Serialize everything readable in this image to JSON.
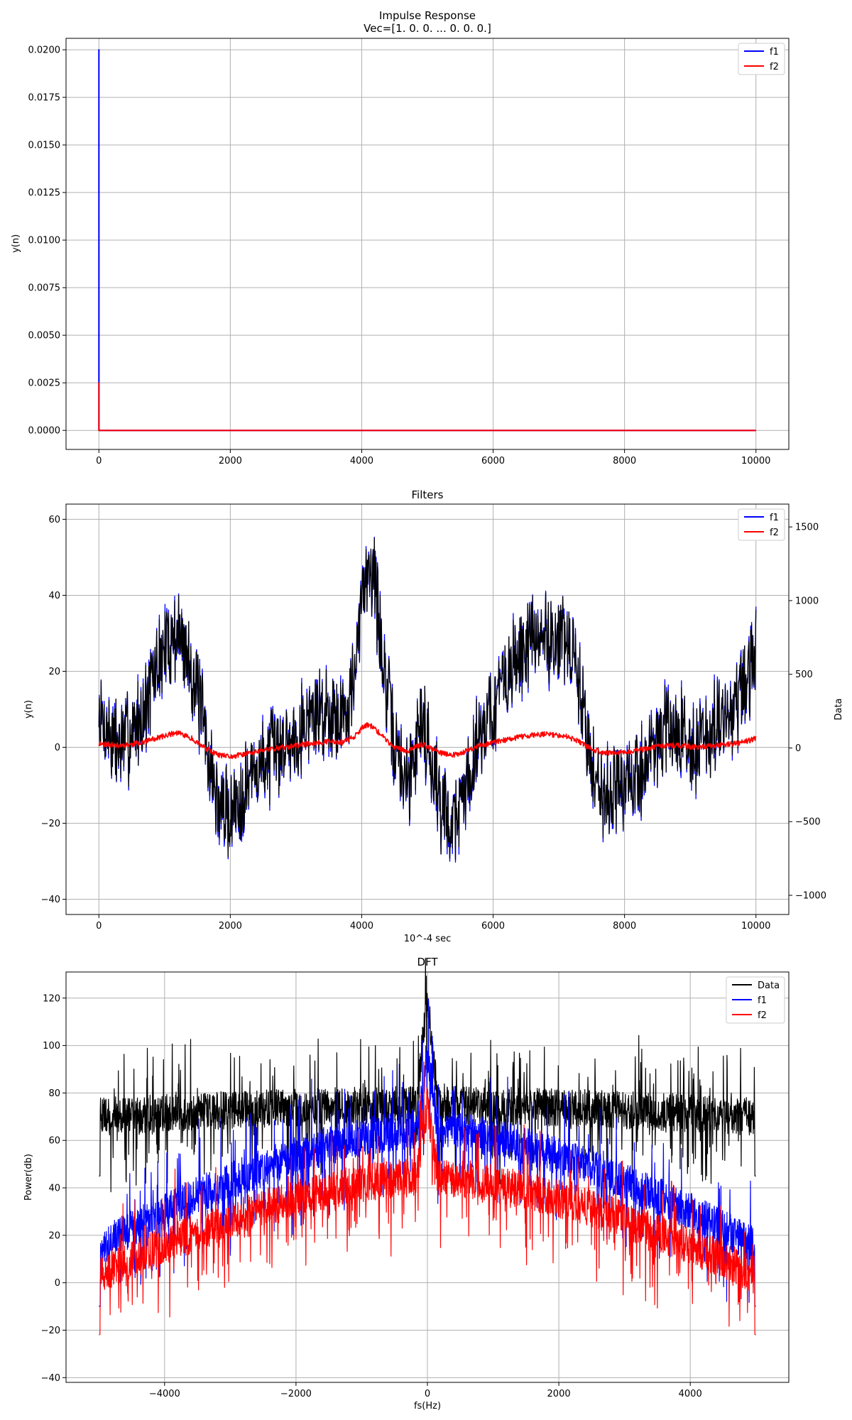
{
  "chart_data": [
    {
      "type": "line",
      "title": "Impulse Response",
      "subtitle": "Vec=[1. 0. 0. ... 0. 0. 0.]",
      "xlabel": "",
      "ylabel": "y(n)",
      "xlim": [
        -500,
        10500
      ],
      "ylim": [
        -0.001,
        0.0206
      ],
      "xticks": [
        0,
        2000,
        4000,
        6000,
        8000,
        10000
      ],
      "xtick_labels": [
        "0",
        "2000",
        "4000",
        "6000",
        "8000",
        "10000"
      ],
      "yticks": [
        0.0,
        0.0025,
        0.005,
        0.0075,
        0.01,
        0.0125,
        0.015,
        0.0175,
        0.02
      ],
      "ytick_labels": [
        "0.0000",
        "0.0025",
        "0.0050",
        "0.0075",
        "0.0100",
        "0.0125",
        "0.0150",
        "0.0175",
        "0.0200"
      ],
      "grid": true,
      "legend": "top-right",
      "series": [
        {
          "name": "f1",
          "color": "#0000ff",
          "x": [
            0,
            0,
            1,
            10000
          ],
          "y": [
            0,
            0.02,
            0,
            0
          ]
        },
        {
          "name": "f2",
          "color": "#ff0000",
          "x": [
            0,
            0,
            1,
            10000
          ],
          "y": [
            0,
            0.0025,
            0,
            0
          ]
        }
      ]
    },
    {
      "type": "line",
      "title": "Filters",
      "xlabel": "10^-4 sec",
      "ylabel": "y(n)",
      "ylabel_right": "Data",
      "xlim": [
        -500,
        10500
      ],
      "ylim": [
        -44,
        64
      ],
      "ylim_right": [
        -1130,
        1655
      ],
      "xticks": [
        0,
        2000,
        4000,
        6000,
        8000,
        10000
      ],
      "xtick_labels": [
        "0",
        "2000",
        "4000",
        "6000",
        "8000",
        "10000"
      ],
      "yticks": [
        -40,
        -20,
        0,
        20,
        40,
        60
      ],
      "ytick_labels": [
        "−40",
        "−20",
        "0",
        "20",
        "40",
        "60"
      ],
      "yticks_right": [
        -1000,
        -500,
        0,
        500,
        1000,
        1500
      ],
      "ytick_labels_right": [
        "−1000",
        "−500",
        "0",
        "500",
        "1000",
        "1500"
      ],
      "grid": true,
      "legend": "top-right",
      "envelope_x": [
        0,
        300,
        500,
        700,
        900,
        1100,
        1200,
        1400,
        1600,
        1800,
        2000,
        2300,
        2600,
        2900,
        3200,
        3500,
        3700,
        3900,
        4000,
        4100,
        4200,
        4300,
        4500,
        4700,
        4900,
        5000,
        5200,
        5400,
        5600,
        5800,
        6000,
        6200,
        6500,
        6800,
        7100,
        7300,
        7500,
        7700,
        7900,
        8100,
        8300,
        8500,
        8800,
        9100,
        9400,
        9700,
        9900,
        10000
      ],
      "envelope_f1": [
        8,
        0,
        4,
        10,
        22,
        29,
        30,
        22,
        5,
        -15,
        -18,
        -8,
        -2,
        2,
        8,
        10,
        8,
        18,
        38,
        50,
        45,
        25,
        0,
        -10,
        8,
        2,
        -15,
        -20,
        -10,
        5,
        10,
        18,
        27,
        29,
        28,
        18,
        -5,
        -12,
        -10,
        -10,
        -5,
        3,
        5,
        0,
        5,
        10,
        18,
        25
      ],
      "envelope_f2": [
        1,
        0.5,
        0.8,
        1.5,
        2.5,
        3.5,
        3.8,
        2.5,
        0,
        -2,
        -2.5,
        -1.5,
        -0.5,
        0.2,
        1,
        1.5,
        1.2,
        3,
        5,
        6,
        5,
        3,
        0,
        -1,
        0.8,
        0.2,
        -1.5,
        -2,
        -1,
        0.5,
        1.2,
        2,
        3,
        3.5,
        3,
        1.5,
        -0.5,
        -1.5,
        -1.5,
        -1.2,
        -0.5,
        0.3,
        0.5,
        0,
        0.5,
        1,
        1.8,
        2.5
      ],
      "series": [
        {
          "name": "f1",
          "color": "#0000ff",
          "axis": "left"
        },
        {
          "name": "f2",
          "color": "#ff0000",
          "axis": "left"
        },
        {
          "name": "",
          "color": "#000000",
          "axis": "left",
          "overlay_of": "f1"
        }
      ]
    },
    {
      "type": "line",
      "title": "DFT",
      "xlabel": "fs(Hz)",
      "ylabel": "Power(db)",
      "xlim": [
        -5500,
        5500
      ],
      "ylim": [
        -42,
        131
      ],
      "xticks": [
        -4000,
        -2000,
        0,
        2000,
        4000
      ],
      "xtick_labels": [
        "−4000",
        "−2000",
        "0",
        "2000",
        "4000"
      ],
      "yticks": [
        -40,
        -20,
        0,
        20,
        40,
        60,
        80,
        100,
        120
      ],
      "ytick_labels": [
        "−40",
        "−20",
        "0",
        "20",
        "40",
        "60",
        "80",
        "100",
        "120"
      ],
      "grid": true,
      "legend": "top-right",
      "peaks": {
        "Data": 123,
        "f1": 97,
        "f2": 76
      },
      "series": [
        {
          "name": "Data",
          "color": "#000000",
          "center_level": 75,
          "edge_level": 70
        },
        {
          "name": "f1",
          "color": "#0000ff",
          "center_level": 65,
          "edge_level": 15
        },
        {
          "name": "f2",
          "color": "#ff0000",
          "center_level": 45,
          "edge_level": 3
        }
      ]
    }
  ]
}
